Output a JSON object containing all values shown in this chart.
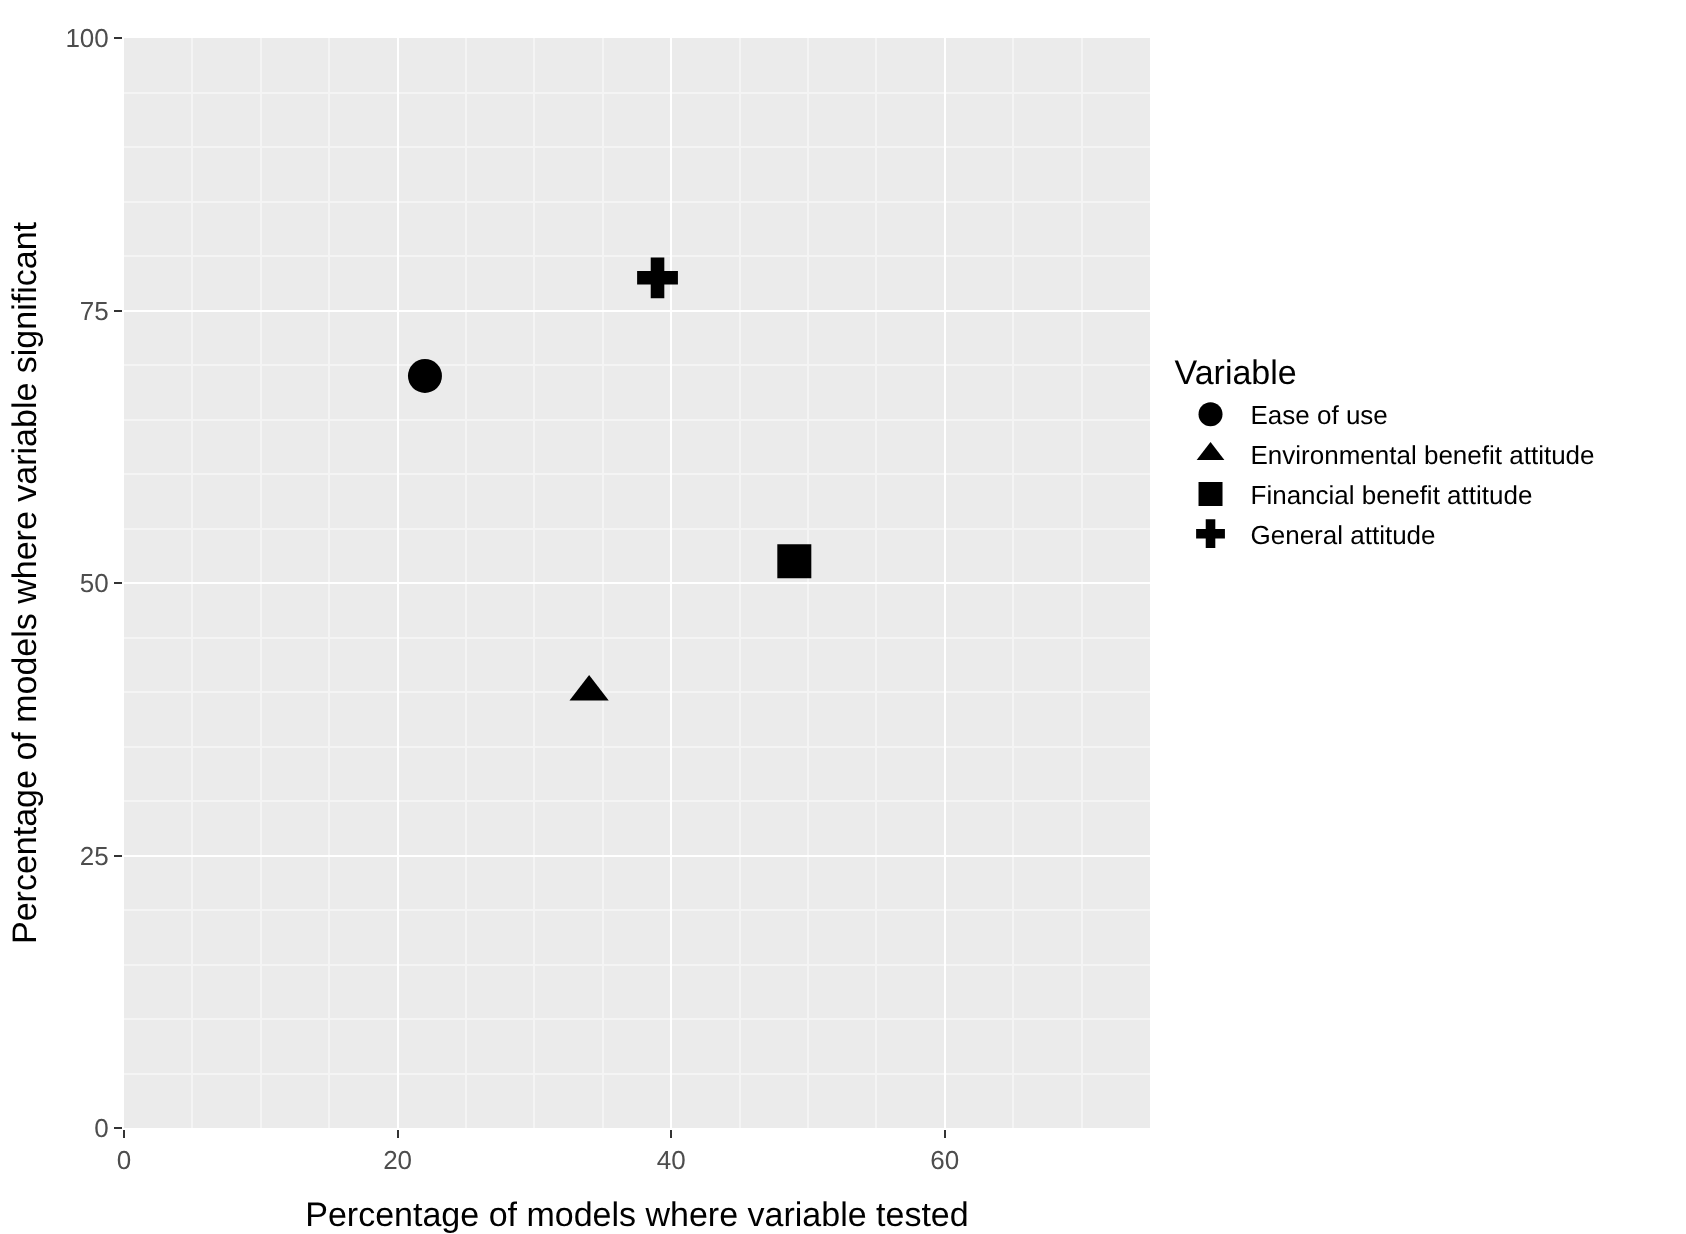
{
  "chart_data": {
    "type": "scatter",
    "xlabel": "Percentage of models where variable tested",
    "ylabel": "Percentage of models where variable significant",
    "legend_title": "Variable",
    "legend": "right",
    "grid": true,
    "xlim": [
      0,
      75
    ],
    "xticks": [
      0,
      20,
      40,
      60
    ],
    "ylim": [
      0,
      100
    ],
    "yticks": [
      0,
      25,
      50,
      75,
      100
    ],
    "series": [
      {
        "name": "Ease of use",
        "color": "#000000",
        "marker": "circle",
        "x": [
          22
        ],
        "values": [
          69
        ]
      },
      {
        "name": "Environmental benefit attitude",
        "color": "#000000",
        "marker": "triangle",
        "x": [
          34
        ],
        "values": [
          40
        ]
      },
      {
        "name": "Financial benefit attitude",
        "color": "#000000",
        "marker": "square",
        "x": [
          49
        ],
        "values": [
          52
        ]
      },
      {
        "name": "General attitude",
        "color": "#000000",
        "marker": "cross",
        "x": [
          39
        ],
        "values": [
          78
        ]
      }
    ]
  }
}
